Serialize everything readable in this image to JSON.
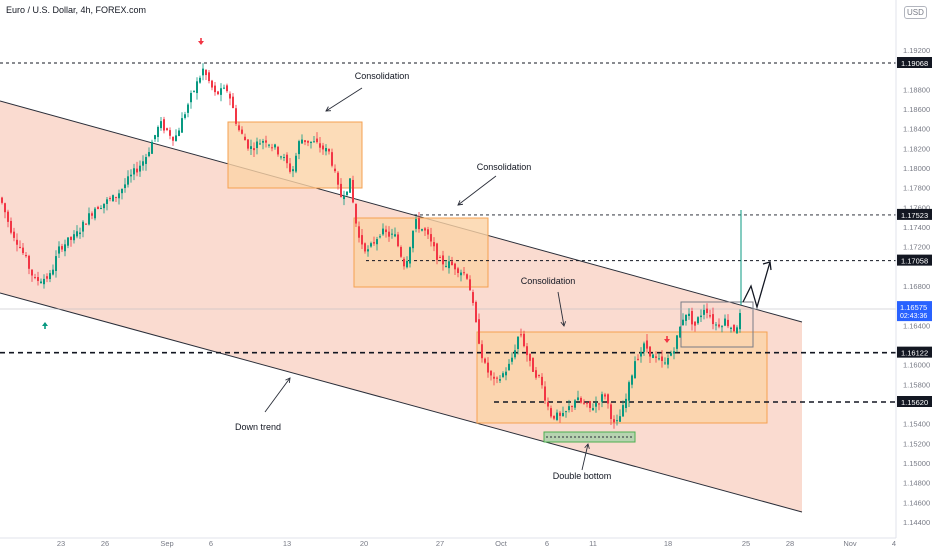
{
  "header": {
    "title": "Euro / U.S. Dollar, 4h, FOREX.com",
    "currency_badge": "USD"
  },
  "chart_data": {
    "type": "candlestick",
    "ylim": [
      1.143,
      1.198
    ],
    "y_ticks": [
      "1.19200",
      "1.19068",
      "1.18800",
      "1.18600",
      "1.18400",
      "1.18200",
      "1.18000",
      "1.17800",
      "1.17600",
      "1.17523",
      "1.17400",
      "1.17200",
      "1.17058",
      "1.16800",
      "1.16575",
      "1.16400",
      "1.16122",
      "1.16000",
      "1.15800",
      "1.15620",
      "1.15400",
      "1.15200",
      "1.15000",
      "1.14800",
      "1.14600",
      "1.14400"
    ],
    "x_ticks": [
      "23",
      "26",
      "Sep",
      "6",
      "13",
      "20",
      "27",
      "Oct",
      "6",
      "11",
      "18",
      "25",
      "28",
      "Nov",
      "4"
    ],
    "price_box": {
      "value": 1.16575,
      "label": "1.16575",
      "countdown": "02:43:36",
      "color": "#2962ff"
    },
    "horizontal_levels": [
      {
        "value": 1.19068,
        "label": "1.19068",
        "style": "dashed-thin"
      },
      {
        "value": 1.17523,
        "label": "1.17523",
        "style": "dashed-thin"
      },
      {
        "value": 1.17058,
        "label": "1.17058",
        "style": "dashed-thin"
      },
      {
        "value": 1.16122,
        "label": "1.16122",
        "style": "dashed-thick"
      },
      {
        "value": 1.1562,
        "label": "1.15620",
        "style": "dashed-thick"
      }
    ],
    "annotations": [
      "Consolidation",
      "Consolidation",
      "Consolidation",
      "Down trend",
      "Double bottom"
    ],
    "colors": {
      "up": "#089981",
      "down": "#f23645",
      "channel": "#f8cfc0",
      "zone": "#fbd3a6",
      "zone_border": "#f5a150"
    }
  }
}
